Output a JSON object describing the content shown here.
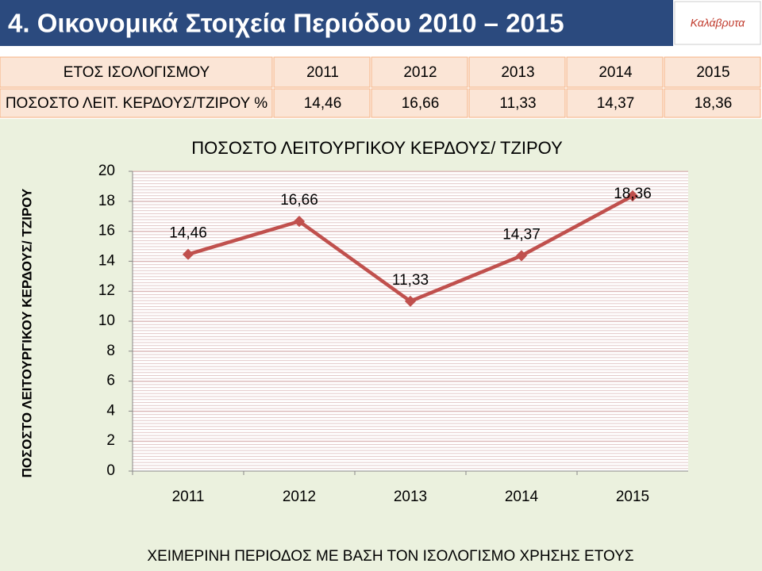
{
  "header": {
    "title": "4. Οικονομικά Στοιχεία Περιόδου 2010 – 2015",
    "logo": "Καλάβρυτα"
  },
  "table": {
    "header": [
      "ΕΤΟΣ ΙΣΟΛΟΓΙΣΜΟΥ",
      "2011",
      "2012",
      "2013",
      "2014",
      "2015"
    ],
    "rows": [
      [
        "ΠΟΣΟΣΤΟ ΛΕΙΤ. ΚΕΡΔΟΥΣ/ΤΖΙΡΟΥ %",
        "14,46",
        "16,66",
        "11,33",
        "14,37",
        "18,36"
      ]
    ]
  },
  "chart_data": {
    "type": "line",
    "title": "ΠΟΣΟΣΤΟ ΛΕΙΤΟΥΡΓΙΚΟΥ ΚΕΡΔΟΥΣ/ ΤΖΙΡΟΥ",
    "y_label": "ΠΟΣΟΣΤΟ ΛΕΙΤΟΥΡΓΙΚΟΥ ΚΕΡΔΟΥΣ/ ΤΖΙΡΟΥ",
    "x_label": "ΧΕΙΜΕΡΙΝΗ ΠΕΡΙΟΔΟΣ ΜΕ ΒΑΣΗ ΤΟΝ ΙΣΟΛΟΓΙΣΜΟ ΧΡΗΣΗΣ ΕΤΟΥΣ",
    "categories": [
      "2011",
      "2012",
      "2013",
      "2014",
      "2015"
    ],
    "values": [
      14.46,
      16.66,
      11.33,
      14.37,
      18.36
    ],
    "value_labels": [
      "14,46",
      "16,66",
      "11,33",
      "14,37",
      "18,36"
    ],
    "color": "#c0504d",
    "ylim": [
      0,
      20
    ],
    "yticks": [
      0,
      2,
      4,
      6,
      8,
      10,
      12,
      14,
      16,
      18,
      20
    ],
    "grid": true
  }
}
